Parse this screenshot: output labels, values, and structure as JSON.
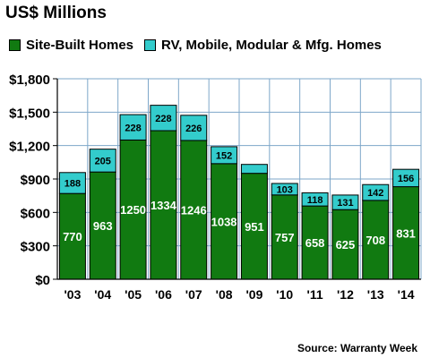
{
  "title": "US$ Millions",
  "source": "Source: Warranty Week",
  "colors": {
    "site_built": "#117a11",
    "rv_mobile": "#33cccc",
    "plot_bg": "#ffffff",
    "grid": "#7ea7c9"
  },
  "chart_data": {
    "type": "bar",
    "stacked": true,
    "categories": [
      "'03",
      "'04",
      "'05",
      "'06",
      "'07",
      "'08",
      "'09",
      "'10",
      "'11",
      "'12",
      "'13",
      "'14"
    ],
    "series": [
      {
        "name": "Site-Built Homes",
        "values": [
          770,
          963,
          1250,
          1334,
          1246,
          1038,
          951,
          757,
          658,
          625,
          708,
          831
        ],
        "labels": [
          "770",
          "963",
          "1250",
          "1334",
          "1246",
          "1038",
          "951",
          "757",
          "658",
          "625",
          "708",
          "831"
        ]
      },
      {
        "name": "RV, Mobile, Modular & Mfg. Homes",
        "values": [
          188,
          205,
          228,
          228,
          226,
          152,
          80,
          103,
          118,
          131,
          142,
          156
        ],
        "labels": [
          "188",
          "205",
          "228",
          "228",
          "226",
          "152",
          "",
          "103",
          "118",
          "131",
          "142",
          "156"
        ]
      }
    ],
    "yticks": [
      0,
      300,
      600,
      900,
      1200,
      1500,
      1800
    ],
    "ytick_labels": [
      "$0",
      "$300",
      "$600",
      "$900",
      "$1,200",
      "$1,500",
      "$1,800"
    ],
    "ylim": [
      0,
      1800
    ],
    "grid": true,
    "legend_position": "top"
  }
}
